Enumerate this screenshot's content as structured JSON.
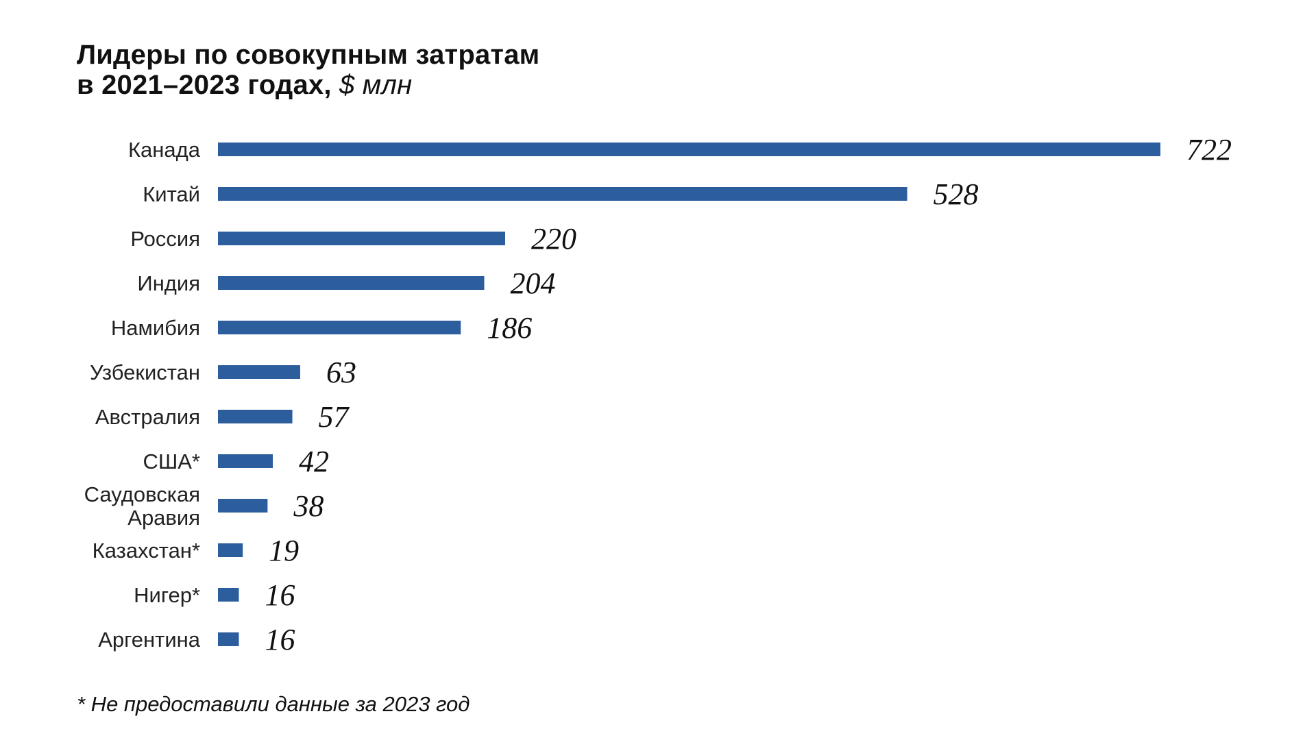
{
  "title": {
    "line1": "Лидеры по совокупным затратам",
    "line2": "в 2021–2023 годах,",
    "unit": "$ млн"
  },
  "footnote": "* Не предоставили данные за 2023 год",
  "chart_data": {
    "type": "bar",
    "orientation": "horizontal",
    "title": "Лидеры по совокупным затратам в 2021–2023 годах, $ млн",
    "categories": [
      "Канада",
      "Китай",
      "Россия",
      "Индия",
      "Намибия",
      "Узбекистан",
      "Австралия",
      "США*",
      "Саудовская Аравия",
      "Казахстан*",
      "Нигер*",
      "Аргентина"
    ],
    "category_lines": [
      [
        "Канада"
      ],
      [
        "Китай"
      ],
      [
        "Россия"
      ],
      [
        "Индия"
      ],
      [
        "Намибия"
      ],
      [
        "Узбекистан"
      ],
      [
        "Австралия"
      ],
      [
        "США*"
      ],
      [
        "Саудовская",
        "Аравия"
      ],
      [
        "Казахстан*"
      ],
      [
        "Нигер*"
      ],
      [
        "Аргентина"
      ]
    ],
    "values": [
      722,
      528,
      220,
      204,
      186,
      63,
      57,
      42,
      38,
      19,
      16,
      16
    ],
    "value_labels": [
      "722",
      "528",
      "220",
      "204",
      "186",
      "63",
      "57",
      "42",
      "38",
      "19",
      "16",
      "16"
    ],
    "xlim": [
      0,
      722
    ],
    "xlabel": "",
    "ylabel": "",
    "grid": false,
    "legend": "none",
    "bar_color": "#2C5D9C"
  }
}
